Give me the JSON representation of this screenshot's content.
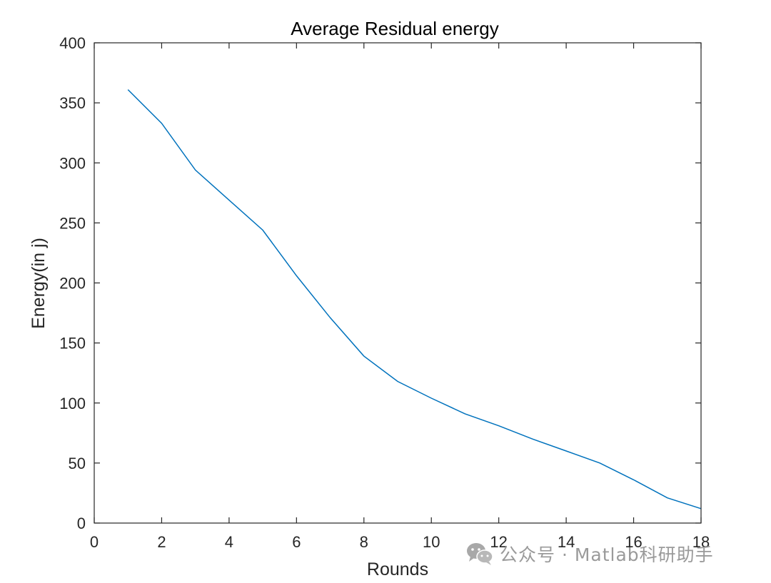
{
  "chart_data": {
    "type": "line",
    "title": "Average Residual energy",
    "xlabel": "Rounds",
    "ylabel": "Energy(in j)",
    "xlim": [
      0,
      18
    ],
    "ylim": [
      0,
      400
    ],
    "xticks": [
      0,
      2,
      4,
      6,
      8,
      10,
      12,
      14,
      16,
      18
    ],
    "yticks": [
      0,
      50,
      100,
      150,
      200,
      250,
      300,
      350,
      400
    ],
    "grid": false,
    "series": [
      {
        "name": "Average Residual energy",
        "color": "#0072BD",
        "x": [
          1,
          2,
          3,
          4,
          5,
          6,
          7,
          8,
          9,
          10,
          11,
          12,
          13,
          14,
          15,
          16,
          17,
          18
        ],
        "y": [
          361,
          333,
          294,
          269,
          244,
          206,
          171,
          139,
          118,
          104,
          91,
          81,
          70,
          60,
          50,
          36,
          21,
          12
        ]
      }
    ]
  },
  "watermark": {
    "icon": "wechat-icon",
    "text": "公众号 · Matlab科研助手"
  }
}
